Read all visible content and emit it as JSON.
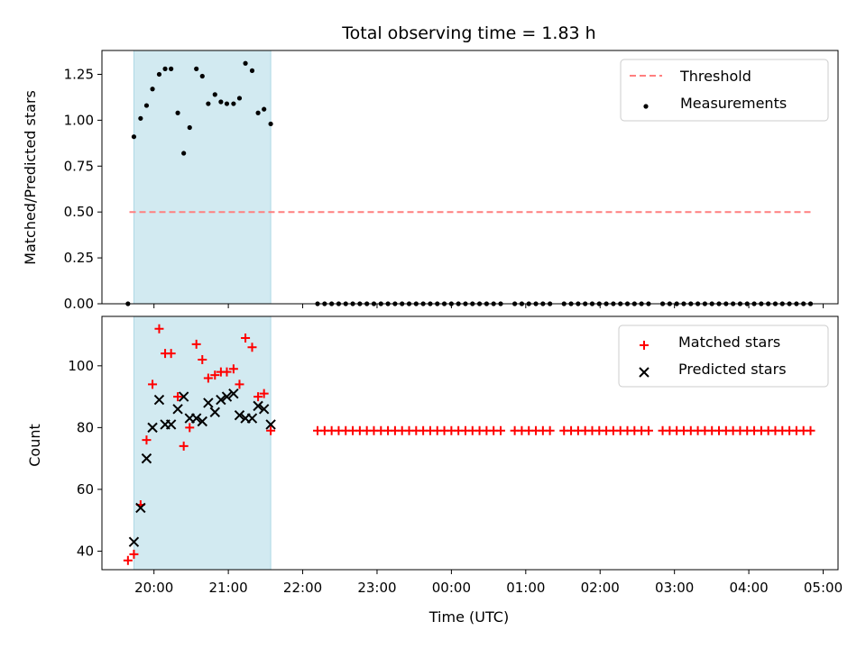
{
  "chart_data": {
    "title": "Total observing time = 1.83 h",
    "shared_x": {
      "label": "Time (UTC)",
      "unit": "hours of day, values >= 24 are after midnight UTC",
      "range": [
        19.3,
        29.2
      ],
      "tick_values": [
        20,
        21,
        22,
        23,
        24,
        25,
        26,
        27,
        28,
        29
      ],
      "tick_labels": [
        "20:00",
        "21:00",
        "22:00",
        "23:00",
        "00:00",
        "01:00",
        "02:00",
        "03:00",
        "04:00",
        "05:00"
      ]
    },
    "shaded_interval": {
      "x": [
        19.73,
        21.57
      ],
      "color": "#add8e6"
    },
    "panels": [
      {
        "type": "scatter",
        "ylabel": "Matched/Predicted stars",
        "ylim": [
          0,
          1.38
        ],
        "ytick_labels": [
          "0.00",
          "0.25",
          "0.50",
          "0.75",
          "1.00",
          "1.25"
        ],
        "legend_position": "top-right",
        "threshold": {
          "name": "Threshold",
          "value": 0.5,
          "x": [
            19.67,
            28.83
          ],
          "color": "#ff7f7f",
          "style": "dashed"
        },
        "series": [
          {
            "name": "Measurements",
            "color": "#000000",
            "marker": "dot",
            "points": [
              [
                19.65,
                0.0
              ],
              [
                19.73,
                0.91
              ],
              [
                19.82,
                1.01
              ],
              [
                19.9,
                1.08
              ],
              [
                19.98,
                1.17
              ],
              [
                20.07,
                1.25
              ],
              [
                20.15,
                1.28
              ],
              [
                20.23,
                1.28
              ],
              [
                20.32,
                1.04
              ],
              [
                20.4,
                0.82
              ],
              [
                20.48,
                0.96
              ],
              [
                20.57,
                1.28
              ],
              [
                20.65,
                1.24
              ],
              [
                20.73,
                1.09
              ],
              [
                20.82,
                1.14
              ],
              [
                20.9,
                1.1
              ],
              [
                20.98,
                1.09
              ],
              [
                21.07,
                1.09
              ],
              [
                21.15,
                1.12
              ],
              [
                21.23,
                1.31
              ],
              [
                21.32,
                1.27
              ],
              [
                21.4,
                1.04
              ],
              [
                21.48,
                1.06
              ],
              [
                21.57,
                0.98
              ]
            ],
            "flat_run": {
              "x_start": 22.2,
              "x_end": 28.83,
              "count": 68,
              "y": 0.0,
              "gaps_after_index": [
                26,
                32,
                45
              ]
            }
          }
        ]
      },
      {
        "type": "scatter",
        "ylabel": "Count",
        "ylim": [
          34,
          116
        ],
        "ytick_labels": [
          "40",
          "60",
          "80",
          "100"
        ],
        "legend_position": "top-right",
        "series": [
          {
            "name": "Matched stars",
            "color": "#ff0000",
            "marker": "plus",
            "points": [
              [
                19.65,
                37
              ],
              [
                19.73,
                39
              ],
              [
                19.82,
                55
              ],
              [
                19.9,
                76
              ],
              [
                19.98,
                94
              ],
              [
                20.07,
                112
              ],
              [
                20.15,
                104
              ],
              [
                20.23,
                104
              ],
              [
                20.32,
                90
              ],
              [
                20.4,
                74
              ],
              [
                20.48,
                80
              ],
              [
                20.57,
                107
              ],
              [
                20.65,
                102
              ],
              [
                20.73,
                96
              ],
              [
                20.82,
                97
              ],
              [
                20.9,
                98
              ],
              [
                20.98,
                98
              ],
              [
                21.07,
                99
              ],
              [
                21.15,
                94
              ],
              [
                21.23,
                109
              ],
              [
                21.32,
                106
              ],
              [
                21.4,
                90
              ],
              [
                21.48,
                91
              ],
              [
                21.57,
                79
              ]
            ],
            "flat_run": {
              "x_start": 22.2,
              "x_end": 28.83,
              "count": 68,
              "y": 79,
              "gaps_after_index": [
                26,
                32,
                45
              ]
            }
          },
          {
            "name": "Predicted stars",
            "color": "#000000",
            "marker": "x",
            "points": [
              [
                19.73,
                43
              ],
              [
                19.82,
                54
              ],
              [
                19.9,
                70
              ],
              [
                19.98,
                80
              ],
              [
                20.07,
                89
              ],
              [
                20.15,
                81
              ],
              [
                20.23,
                81
              ],
              [
                20.32,
                86
              ],
              [
                20.4,
                90
              ],
              [
                20.48,
                83
              ],
              [
                20.57,
                83
              ],
              [
                20.65,
                82
              ],
              [
                20.73,
                88
              ],
              [
                20.82,
                85
              ],
              [
                20.9,
                89
              ],
              [
                20.98,
                90
              ],
              [
                21.07,
                91
              ],
              [
                21.15,
                84
              ],
              [
                21.23,
                83
              ],
              [
                21.32,
                83
              ],
              [
                21.4,
                87
              ],
              [
                21.48,
                86
              ],
              [
                21.57,
                81
              ]
            ]
          }
        ]
      }
    ]
  }
}
